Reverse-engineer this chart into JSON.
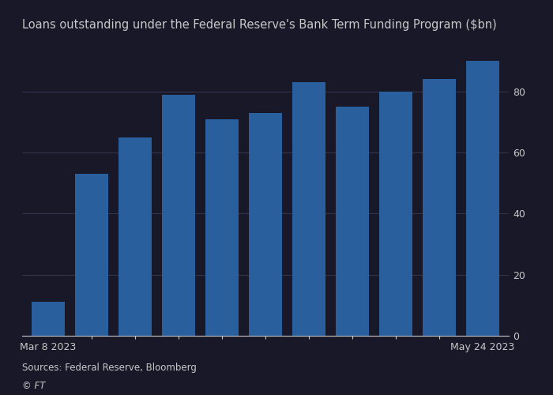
{
  "title": "Loans outstanding under the Federal Reserve's Bank Term Funding Program ($bn)",
  "values": [
    11,
    53,
    65,
    79,
    71,
    73,
    83,
    75,
    80,
    84,
    90
  ],
  "bar_color": "#2a5f9e",
  "xlabel_left": "Mar 8 2023",
  "xlabel_right": "May 24 2023",
  "ylabel_ticks": [
    0,
    20,
    40,
    60,
    80
  ],
  "ylim": [
    0,
    97
  ],
  "source_text": "Sources: Federal Reserve, Bloomberg",
  "ft_text": "© FT",
  "background_color": "#181829",
  "text_color": "#c8c8c8",
  "grid_color": "#3a3a55",
  "title_fontsize": 10.5,
  "source_fontsize": 8.5,
  "tick_fontsize": 9
}
